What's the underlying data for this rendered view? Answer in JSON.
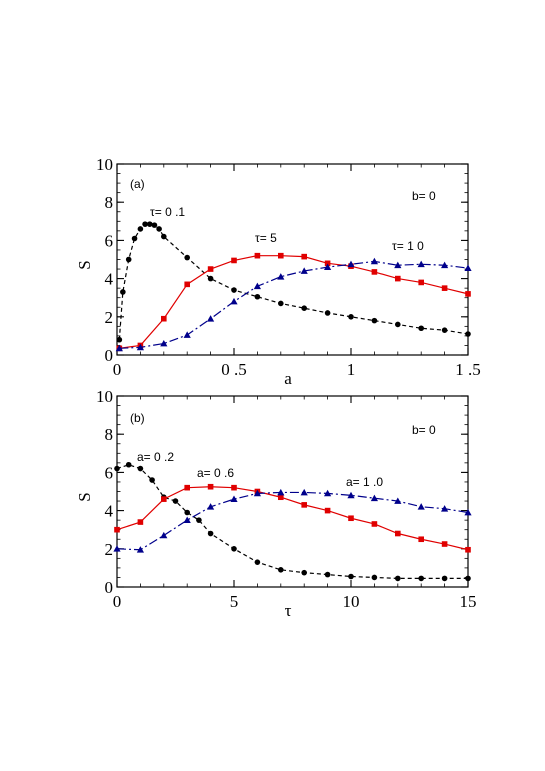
{
  "chart_data": [
    {
      "type": "line",
      "panel_label": "(a)",
      "condition": "b= 0",
      "xlabel": "a",
      "ylabel": "S",
      "xlim": [
        0,
        1.5
      ],
      "ylim": [
        0,
        10
      ],
      "xticks": [
        0,
        0.5,
        1,
        1.5
      ],
      "xtick_labels": [
        "0",
        "0 .5",
        "1",
        "1 .5"
      ],
      "yticks": [
        0,
        2,
        4,
        6,
        8,
        10
      ],
      "ytick_labels": [
        "0",
        "2",
        "4",
        "6",
        "8",
        "10"
      ],
      "series": [
        {
          "label": "τ= 0 .1",
          "color": "#000000",
          "marker": "circle",
          "dash": "4,3",
          "x": [
            0.01,
            0.025,
            0.05,
            0.075,
            0.1,
            0.12,
            0.14,
            0.16,
            0.18,
            0.2,
            0.3,
            0.4,
            0.5,
            0.6,
            0.7,
            0.8,
            0.9,
            1.0,
            1.1,
            1.2,
            1.3,
            1.4,
            1.5
          ],
          "y": [
            0.8,
            3.3,
            5.0,
            6.1,
            6.6,
            6.85,
            6.85,
            6.8,
            6.6,
            6.2,
            5.1,
            4.0,
            3.4,
            3.05,
            2.7,
            2.45,
            2.2,
            2.0,
            1.8,
            1.6,
            1.4,
            1.3,
            1.1
          ]
        },
        {
          "label": "τ= 5",
          "color": "#e00000",
          "marker": "square",
          "dash": "",
          "x": [
            0.01,
            0.1,
            0.2,
            0.3,
            0.4,
            0.5,
            0.6,
            0.7,
            0.8,
            0.9,
            1.0,
            1.1,
            1.2,
            1.3,
            1.4,
            1.5
          ],
          "y": [
            0.35,
            0.5,
            1.9,
            3.7,
            4.5,
            4.95,
            5.2,
            5.2,
            5.15,
            4.8,
            4.65,
            4.35,
            4.0,
            3.8,
            3.5,
            3.2
          ]
        },
        {
          "label": "τ= 1 0",
          "color": "#00008b",
          "marker": "triangle",
          "dash": "9,3,2,3",
          "x": [
            0.01,
            0.1,
            0.2,
            0.3,
            0.4,
            0.5,
            0.6,
            0.7,
            0.8,
            0.9,
            1.0,
            1.1,
            1.2,
            1.3,
            1.4,
            1.5
          ],
          "y": [
            0.35,
            0.4,
            0.6,
            1.05,
            1.9,
            2.8,
            3.6,
            4.1,
            4.4,
            4.6,
            4.75,
            4.9,
            4.7,
            4.75,
            4.7,
            4.55
          ]
        }
      ]
    },
    {
      "type": "line",
      "panel_label": "(b)",
      "condition": "b= 0",
      "xlabel": "τ",
      "ylabel": "S",
      "xlim": [
        0,
        15
      ],
      "ylim": [
        0,
        10
      ],
      "xticks": [
        0,
        5,
        10,
        15
      ],
      "xtick_labels": [
        "0",
        "5",
        "10",
        "15"
      ],
      "yticks": [
        0,
        2,
        4,
        6,
        8,
        10
      ],
      "ytick_labels": [
        "0",
        "2",
        "4",
        "6",
        "8",
        "10"
      ],
      "series": [
        {
          "label": "a= 0 .2",
          "color": "#000000",
          "marker": "circle",
          "dash": "4,3",
          "x": [
            0,
            0.5,
            1,
            1.5,
            2,
            2.5,
            3,
            3.5,
            4,
            5,
            6,
            7,
            8,
            9,
            10,
            11,
            12,
            13,
            14,
            15
          ],
          "y": [
            6.2,
            6.4,
            6.2,
            5.6,
            4.7,
            4.5,
            3.9,
            3.5,
            2.8,
            2.0,
            1.3,
            0.9,
            0.75,
            0.65,
            0.55,
            0.5,
            0.45,
            0.45,
            0.45,
            0.45
          ]
        },
        {
          "label": "a= 0 .6",
          "color": "#e00000",
          "marker": "square",
          "dash": "",
          "x": [
            0,
            1,
            2,
            3,
            4,
            5,
            6,
            7,
            8,
            9,
            10,
            11,
            12,
            13,
            14,
            15
          ],
          "y": [
            3.0,
            3.4,
            4.6,
            5.2,
            5.25,
            5.2,
            5.0,
            4.7,
            4.3,
            4.0,
            3.6,
            3.3,
            2.8,
            2.5,
            2.25,
            1.95
          ]
        },
        {
          "label": "a= 1 .0",
          "color": "#00008b",
          "marker": "triangle",
          "dash": "9,3,2,3",
          "x": [
            0,
            1,
            2,
            3,
            4,
            5,
            6,
            7,
            8,
            9,
            10,
            11,
            12,
            13,
            14,
            15
          ],
          "y": [
            2.0,
            1.95,
            2.7,
            3.5,
            4.2,
            4.6,
            4.9,
            4.95,
            4.95,
            4.9,
            4.8,
            4.65,
            4.5,
            4.2,
            4.1,
            3.9
          ]
        }
      ]
    }
  ]
}
